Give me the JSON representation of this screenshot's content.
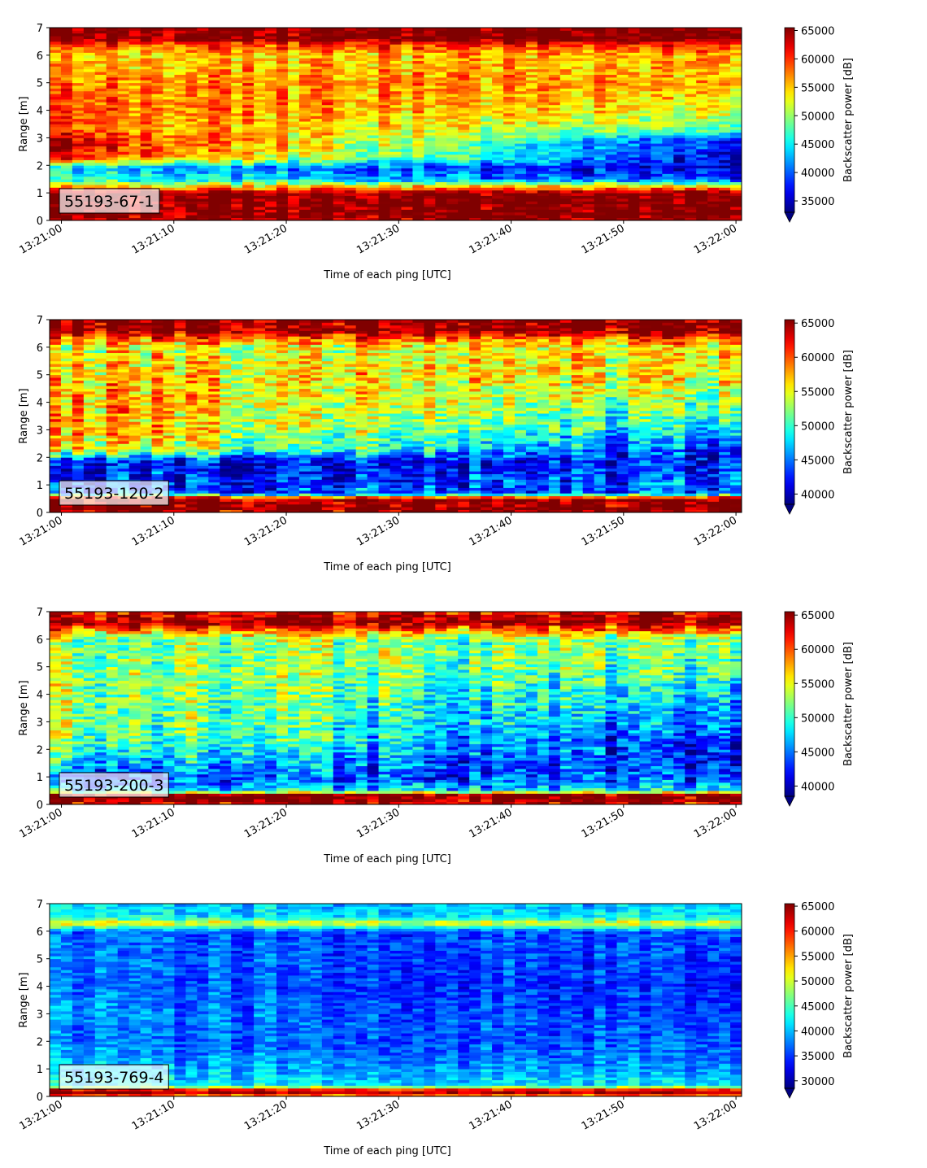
{
  "chart_data": [
    {
      "type": "heatmap",
      "label": "55193-67-1",
      "xlabel": "Time of each ping [UTC]",
      "ylabel": "Range [m]",
      "xticks": [
        "13:21:00",
        "13:21:10",
        "13:21:20",
        "13:21:30",
        "13:21:40",
        "13:21:50",
        "13:22:00"
      ],
      "xlim": [
        "13:21:00",
        "13:22:00"
      ],
      "ylim": [
        0,
        7
      ],
      "yticks": [
        0,
        1,
        2,
        3,
        4,
        5,
        6,
        7
      ],
      "colorbar": {
        "label": "Backscatter power [dB]",
        "min": 33000,
        "max": 65500,
        "ticks": [
          35000,
          40000,
          45000,
          50000,
          55000,
          60000,
          65000
        ],
        "extend": "min"
      },
      "profile": [
        {
          "r": 0.0,
          "v0": 64000,
          "v1": 64000
        },
        {
          "r": 0.2,
          "v0": 65500,
          "v1": 65500
        },
        {
          "r": 1.0,
          "v0": 65500,
          "v1": 65500
        },
        {
          "r": 1.2,
          "v0": 56000,
          "v1": 56000
        },
        {
          "r": 1.5,
          "v0": 47000,
          "v1": 38000
        },
        {
          "r": 1.9,
          "v0": 44000,
          "v1": 35000
        },
        {
          "r": 2.3,
          "v0": 62000,
          "v1": 35000
        },
        {
          "r": 2.9,
          "v0": 64000,
          "v1": 37000
        },
        {
          "r": 3.3,
          "v0": 59000,
          "v1": 47000
        },
        {
          "r": 4.0,
          "v0": 59000,
          "v1": 52000
        },
        {
          "r": 5.0,
          "v0": 58000,
          "v1": 55000
        },
        {
          "r": 6.0,
          "v0": 55000,
          "v1": 55000
        },
        {
          "r": 6.4,
          "v0": 60000,
          "v1": 60000
        },
        {
          "r": 6.6,
          "v0": 65500,
          "v1": 65500
        },
        {
          "r": 7.0,
          "v0": 65500,
          "v1": 65500
        }
      ],
      "noise": 4000
    },
    {
      "type": "heatmap",
      "label": "55193-120-2",
      "xlabel": "Time of each ping [UTC]",
      "ylabel": "Range [m]",
      "xticks": [
        "13:21:00",
        "13:21:10",
        "13:21:20",
        "13:21:30",
        "13:21:40",
        "13:21:50",
        "13:22:00"
      ],
      "xlim": [
        "13:21:00",
        "13:22:00"
      ],
      "ylim": [
        0,
        7
      ],
      "yticks": [
        0,
        1,
        2,
        3,
        4,
        5,
        6,
        7
      ],
      "colorbar": {
        "label": "Backscatter power [dB]",
        "min": 38500,
        "max": 65500,
        "ticks": [
          40000,
          45000,
          50000,
          55000,
          60000,
          65000
        ],
        "extend": "min"
      },
      "profile": [
        {
          "r": 0.0,
          "v0": 64000,
          "v1": 64000
        },
        {
          "r": 0.1,
          "v0": 65500,
          "v1": 65500
        },
        {
          "r": 0.5,
          "v0": 65500,
          "v1": 65500
        },
        {
          "r": 0.7,
          "v0": 44000,
          "v1": 44000
        },
        {
          "r": 1.3,
          "v0": 42000,
          "v1": 44000
        },
        {
          "r": 1.8,
          "v0": 41000,
          "v1": 42000
        },
        {
          "r": 2.3,
          "v0": 56000,
          "v1": 42000
        },
        {
          "r": 3.0,
          "v0": 58000,
          "v1": 47000
        },
        {
          "r": 4.0,
          "v0": 58000,
          "v1": 51000
        },
        {
          "r": 5.0,
          "v0": 57000,
          "v1": 55000
        },
        {
          "r": 6.0,
          "v0": 55000,
          "v1": 55000
        },
        {
          "r": 6.4,
          "v0": 61000,
          "v1": 61000
        },
        {
          "r": 6.6,
          "v0": 65500,
          "v1": 65500
        },
        {
          "r": 7.0,
          "v0": 65500,
          "v1": 65500
        }
      ],
      "noise": 4500
    },
    {
      "type": "heatmap",
      "label": "55193-200-3",
      "xlabel": "Time of each ping [UTC]",
      "ylabel": "Range [m]",
      "xticks": [
        "13:21:00",
        "13:21:10",
        "13:21:20",
        "13:21:30",
        "13:21:40",
        "13:21:50",
        "13:22:00"
      ],
      "xlim": [
        "13:21:00",
        "13:22:00"
      ],
      "ylim": [
        0,
        7
      ],
      "yticks": [
        0,
        1,
        2,
        3,
        4,
        5,
        6,
        7
      ],
      "colorbar": {
        "label": "Backscatter power [dB]",
        "min": 38500,
        "max": 65500,
        "ticks": [
          40000,
          45000,
          50000,
          55000,
          60000,
          65000
        ],
        "extend": "min"
      },
      "profile": [
        {
          "r": 0.0,
          "v0": 62000,
          "v1": 62000
        },
        {
          "r": 0.1,
          "v0": 65500,
          "v1": 65500
        },
        {
          "r": 0.35,
          "v0": 65500,
          "v1": 65500
        },
        {
          "r": 0.5,
          "v0": 48000,
          "v1": 48000
        },
        {
          "r": 1.0,
          "v0": 43000,
          "v1": 44000
        },
        {
          "r": 1.5,
          "v0": 48000,
          "v1": 42000
        },
        {
          "r": 2.2,
          "v0": 52000,
          "v1": 42000
        },
        {
          "r": 3.0,
          "v0": 53000,
          "v1": 45000
        },
        {
          "r": 4.0,
          "v0": 53000,
          "v1": 47000
        },
        {
          "r": 5.0,
          "v0": 53000,
          "v1": 51000
        },
        {
          "r": 6.0,
          "v0": 52000,
          "v1": 52000
        },
        {
          "r": 6.4,
          "v0": 60000,
          "v1": 60000
        },
        {
          "r": 6.6,
          "v0": 65500,
          "v1": 65500
        },
        {
          "r": 7.0,
          "v0": 62000,
          "v1": 62000
        }
      ],
      "noise": 4500
    },
    {
      "type": "heatmap",
      "label": "55193-769-4",
      "xlabel": "Time of each ping [UTC]",
      "ylabel": "Range [m]",
      "xticks": [
        "13:21:00",
        "13:21:10",
        "13:21:20",
        "13:21:30",
        "13:21:40",
        "13:21:50",
        "13:22:00"
      ],
      "xlim": [
        "13:21:00",
        "13:22:00"
      ],
      "ylim": [
        0,
        7
      ],
      "yticks": [
        0,
        1,
        2,
        3,
        4,
        5,
        6,
        7
      ],
      "colorbar": {
        "label": "Backscatter power [dB]",
        "min": 28500,
        "max": 65500,
        "ticks": [
          30000,
          35000,
          40000,
          45000,
          50000,
          55000,
          60000,
          65000
        ],
        "extend": "min"
      },
      "profile": [
        {
          "r": 0.0,
          "v0": 50000,
          "v1": 50000
        },
        {
          "r": 0.1,
          "v0": 65500,
          "v1": 65500
        },
        {
          "r": 0.25,
          "v0": 60000,
          "v1": 60000
        },
        {
          "r": 0.4,
          "v0": 42000,
          "v1": 42000
        },
        {
          "r": 1.0,
          "v0": 40000,
          "v1": 38000
        },
        {
          "r": 2.0,
          "v0": 37000,
          "v1": 36000
        },
        {
          "r": 3.0,
          "v0": 38000,
          "v1": 35000
        },
        {
          "r": 4.0,
          "v0": 37000,
          "v1": 34000
        },
        {
          "r": 5.0,
          "v0": 37000,
          "v1": 35000
        },
        {
          "r": 6.0,
          "v0": 36000,
          "v1": 36000
        },
        {
          "r": 6.3,
          "v0": 52000,
          "v1": 52000
        },
        {
          "r": 6.5,
          "v0": 42000,
          "v1": 42000
        },
        {
          "r": 7.0,
          "v0": 40000,
          "v1": 40000
        }
      ],
      "noise": 3500
    }
  ]
}
